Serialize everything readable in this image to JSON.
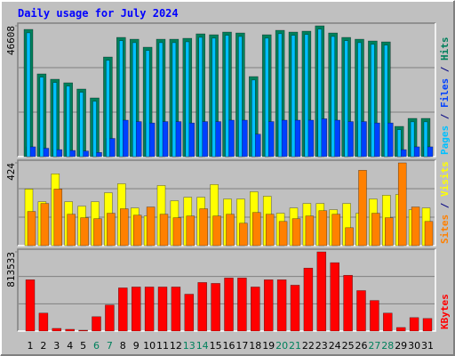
{
  "chart_data": {
    "type": "bar",
    "title": "Daily usage for July 2024",
    "categories": [
      "1",
      "2",
      "3",
      "4",
      "5",
      "6",
      "7",
      "8",
      "9",
      "10",
      "11",
      "12",
      "13",
      "14",
      "15",
      "16",
      "17",
      "18",
      "19",
      "20",
      "21",
      "22",
      "23",
      "24",
      "25",
      "26",
      "27",
      "28",
      "29",
      "30",
      "31"
    ],
    "category_colors": [
      "#000000",
      "#000000",
      "#000000",
      "#000000",
      "#000000",
      "#00805c",
      "#00805c",
      "#000000",
      "#000000",
      "#000000",
      "#000000",
      "#000000",
      "#00805c",
      "#00805c",
      "#000000",
      "#000000",
      "#000000",
      "#000000",
      "#000000",
      "#00805c",
      "#00805c",
      "#000000",
      "#000000",
      "#000000",
      "#000000",
      "#000000",
      "#00805c",
      "#00805c",
      "#000000",
      "#000000",
      "#000000"
    ],
    "legend_separator": " / ",
    "panels": [
      {
        "ylim": [
          0,
          46608
        ],
        "yticks": [
          46608
        ],
        "series": [
          {
            "name": "Hits",
            "color": "#00805c",
            "values": [
              45330,
              29480,
              27580,
              26310,
              24090,
              20920,
              35500,
              42480,
              41840,
              38990,
              41840,
              41840,
              42160,
              43750,
              43430,
              44380,
              44060,
              28530,
              43430,
              45010,
              44380,
              44700,
              46608,
              44060,
              42480,
              41840,
              41210,
              40890,
              10780,
              13630,
              13630
            ]
          },
          {
            "name": "Files",
            "color": "#0040ff",
            "values": [
              3500,
              3000,
              2500,
              2200,
              2000,
              1500,
              6500,
              13000,
              12500,
              12000,
              12500,
              12500,
              12000,
              12500,
              12500,
              13000,
              13000,
              8000,
              12500,
              13000,
              13000,
              13000,
              13500,
              13000,
              12500,
              12500,
              12000,
              12000,
              2500,
              3500,
              3500
            ]
          },
          {
            "name": "Pages",
            "color": "#00c0ff",
            "values": [
              44100,
              28300,
              26400,
              25100,
              22900,
              19700,
              34300,
              41300,
              40600,
              37800,
              40600,
              40600,
              40900,
              42500,
              42200,
              43200,
              42800,
              27300,
              42200,
              43800,
              43200,
              43500,
              45400,
              42800,
              41300,
              40600,
              40000,
              39700,
              9600,
              12400,
              12400
            ]
          }
        ]
      },
      {
        "ylim": [
          0,
          424
        ],
        "yticks": [
          424
        ],
        "series": [
          {
            "name": "Visits",
            "color": "#ffff00",
            "values": [
              290,
              225,
              368,
              225,
              202,
              225,
              271,
              317,
              193,
              152,
              308,
              230,
              248,
              248,
              313,
              239,
              239,
              276,
              253,
              166,
              193,
              216,
              216,
              184,
              216,
              166,
              239,
              258,
              262,
              184,
              193
            ]
          },
          {
            "name": "Sites",
            "color": "#ff8000",
            "values": [
              175,
              216,
              290,
              161,
              143,
              138,
              166,
              189,
              156,
              198,
              161,
              143,
              152,
              189,
              152,
              161,
              115,
              170,
              161,
              124,
              138,
              152,
              179,
              161,
              92,
              386,
              166,
              143,
              424,
              198,
              124
            ]
          }
        ]
      },
      {
        "ylim": [
          0,
          813533
        ],
        "yticks": [
          813533
        ],
        "series": [
          {
            "name": "KBytes",
            "color": "#ff0000",
            "values": [
              526965,
              184900,
              27735,
              18490,
              9245,
              147920,
              268105,
              443760,
              453005,
              453005,
              453005,
              453005,
              379045,
              499230,
              489985,
              545455,
              545455,
              453005,
              526965,
              526965,
              471495,
              647150,
              813533,
              702620,
              573190,
              416025,
              314330,
              184900,
              36980,
              138675,
              129430
            ]
          }
        ]
      }
    ]
  }
}
